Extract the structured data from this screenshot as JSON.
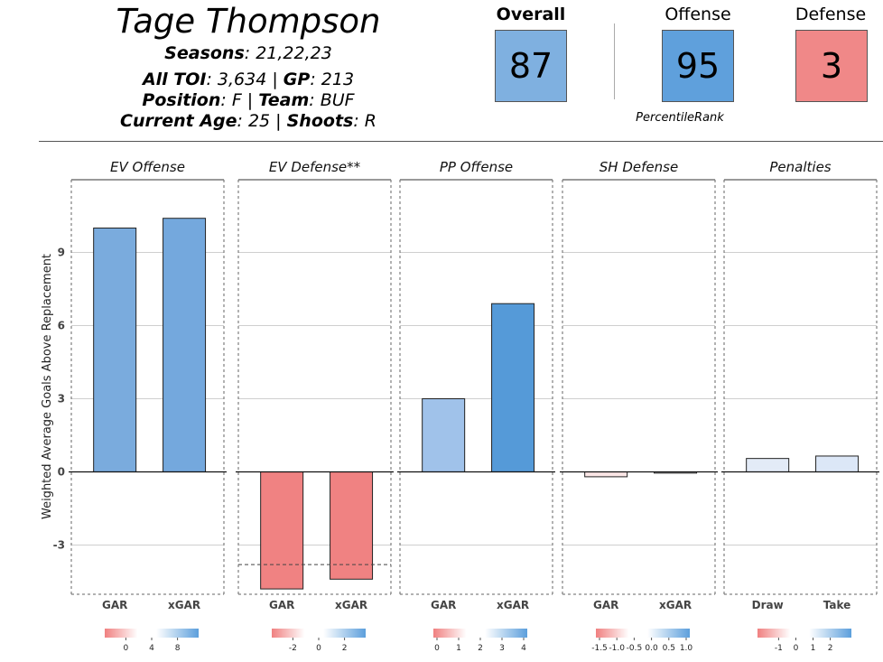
{
  "header": {
    "player_name": "Tage Thompson",
    "seasons_label": "Seasons",
    "seasons_value": ": 21,22,23",
    "toi_label": "All TOI",
    "toi_value": ": 3,634 | ",
    "gp_label": "GP",
    "gp_value": ": 213",
    "position_label": "Position",
    "position_value": ": F | ",
    "team_label": "Team",
    "team_value": ": BUF",
    "age_label": "Current Age",
    "age_value": ": 25 | ",
    "shoots_label": "Shoots",
    "shoots_value": ": R"
  },
  "cards": {
    "overall_label": "Overall",
    "overall_value": "87",
    "overall_color": "#7fb0e0",
    "offense_label": "Offense",
    "offense_value": "95",
    "offense_color": "#5fa0dc",
    "defense_label": "Defense",
    "defense_value": "3",
    "defense_color": "#f08888",
    "percentile_label": "PercentileRank"
  },
  "chart_data": {
    "type": "bar",
    "ylabel": "Weighted Average Goals Above Replacement",
    "ylim": [
      -5,
      12
    ],
    "yticks": [
      -3,
      0,
      3,
      6,
      9
    ],
    "ytick_labels": [
      "-3",
      "0",
      "3",
      "6",
      "9"
    ],
    "grid": true,
    "panels": [
      {
        "title": "EV Offense",
        "categories": [
          "GAR",
          "xGAR"
        ],
        "values": [
          10.0,
          10.4
        ],
        "colors": [
          "#7aabdd",
          "#74a8dd"
        ],
        "legend_ticks": [
          "0",
          "4",
          "8"
        ]
      },
      {
        "title": "EV Defense**",
        "categories": [
          "GAR",
          "xGAR"
        ],
        "values": [
          -4.8,
          -4.4
        ],
        "colors": [
          "#f08282",
          "#f08282"
        ],
        "reference_line": -3.8,
        "legend_ticks": [
          "-2",
          "0",
          "2"
        ]
      },
      {
        "title": "PP Offense",
        "categories": [
          "GAR",
          "xGAR"
        ],
        "values": [
          3.0,
          6.9
        ],
        "colors": [
          "#a0c2ea",
          "#559ad8"
        ],
        "legend_ticks": [
          "0",
          "1",
          "2",
          "3",
          "4"
        ]
      },
      {
        "title": "SH Defense",
        "categories": [
          "GAR",
          "xGAR"
        ],
        "values": [
          -0.2,
          -0.05
        ],
        "colors": [
          "#fbe6e6",
          "#eef0f6"
        ],
        "legend_ticks": [
          "-1.5",
          "-1.0",
          "-0.5",
          "0.0",
          "0.5",
          "1.0"
        ]
      },
      {
        "title": "Penalties",
        "categories": [
          "Draw",
          "Take"
        ],
        "values": [
          0.55,
          0.65
        ],
        "colors": [
          "#e3ebf7",
          "#dce7f7"
        ],
        "legend_ticks": [
          "-1",
          "0",
          "1",
          "2"
        ]
      }
    ]
  }
}
